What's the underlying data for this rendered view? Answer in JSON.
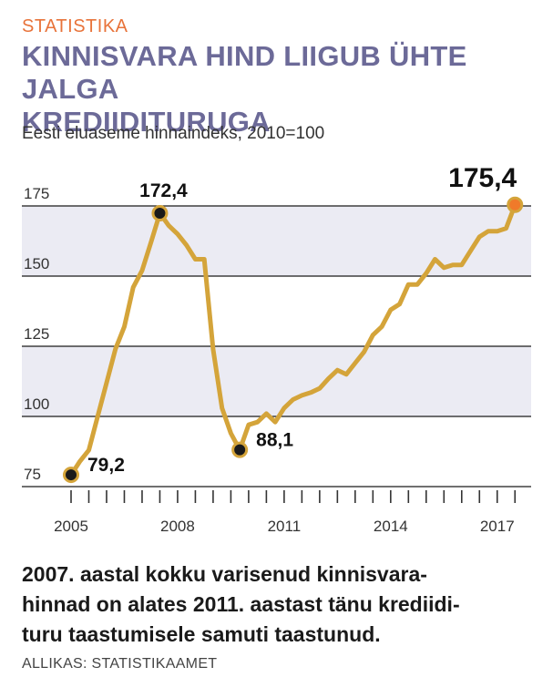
{
  "header": {
    "kicker": "STATISTIKA",
    "title_line1": "KINNISVARA HIND LIIGUB ÜHTE JALGA",
    "title_line2": "KREDIIDITURUGA",
    "subtitle": "Eesti eluaseme hinnaindeks, 2010=100"
  },
  "caption": {
    "line1": "2007. aastal kokku varisenud kinnisvara-",
    "line2": "hinnad on alates 2011. aastast tänu krediidi-",
    "line3": "turu taastumisele samuti taastunud."
  },
  "source": "ALLIKAS: STATISTIKAAMET",
  "colors": {
    "line": "#d4a43a",
    "band": "#ebebf3",
    "point": "#1a1a1a",
    "highlight": "#f07a2a",
    "title": "#6c6a98",
    "kicker": "#e8733a"
  },
  "chart_data": {
    "type": "line",
    "xlim": [
      2005,
      2017.75
    ],
    "ylim": [
      72,
      178
    ],
    "yticks": [
      75,
      100,
      125,
      150,
      175
    ],
    "ytick_labels": [
      "75",
      "100",
      "125",
      "150",
      "175"
    ],
    "xticks": [
      2005,
      2008,
      2011,
      2014,
      2017
    ],
    "xtick_labels": [
      "2005",
      "2008",
      "2011",
      "2014",
      "2017"
    ],
    "grid": "horizontal bands",
    "series": [
      {
        "x": [
          2005.0,
          2005.25,
          2005.5,
          2005.75,
          2006.0,
          2006.25,
          2006.5,
          2006.75,
          2007.0,
          2007.25,
          2007.5,
          2007.75,
          2008.0,
          2008.25,
          2008.5,
          2008.75,
          2009.0,
          2009.25,
          2009.5,
          2009.75,
          2010.0,
          2010.25,
          2010.5,
          2010.75,
          2011.0,
          2011.25,
          2011.5,
          2011.75,
          2012.0,
          2012.25,
          2012.5,
          2012.75,
          2013.0,
          2013.25,
          2013.5,
          2013.75,
          2014.0,
          2014.25,
          2014.5,
          2014.75,
          2015.0,
          2015.25,
          2015.5,
          2015.75,
          2016.0,
          2016.25,
          2016.5,
          2016.75,
          2017.0,
          2017.25,
          2017.5
        ],
        "values": [
          79.2,
          84,
          88,
          100,
          112,
          124,
          132,
          146,
          152,
          162,
          172.4,
          168,
          165,
          161,
          156,
          156,
          124,
          103,
          94,
          88.1,
          97,
          98,
          101,
          98,
          103,
          106,
          107.5,
          108.5,
          110,
          113.5,
          116.5,
          115,
          119,
          123,
          129,
          132,
          138,
          140,
          147,
          147,
          151,
          156,
          153,
          154,
          154,
          159,
          164,
          166,
          166,
          167,
          175.4
        ]
      }
    ],
    "annotations": [
      {
        "label": "79,2",
        "x": 2005.0,
        "y": 79.2,
        "side": "right",
        "highlight": false
      },
      {
        "label": "172,4",
        "x": 2007.5,
        "y": 172.4,
        "side": "above",
        "highlight": false
      },
      {
        "label": "88,1",
        "x": 2009.75,
        "y": 88.1,
        "side": "right",
        "highlight": false
      },
      {
        "label": "175,4",
        "x": 2017.5,
        "y": 175.4,
        "side": "above-left",
        "highlight": true
      }
    ]
  }
}
